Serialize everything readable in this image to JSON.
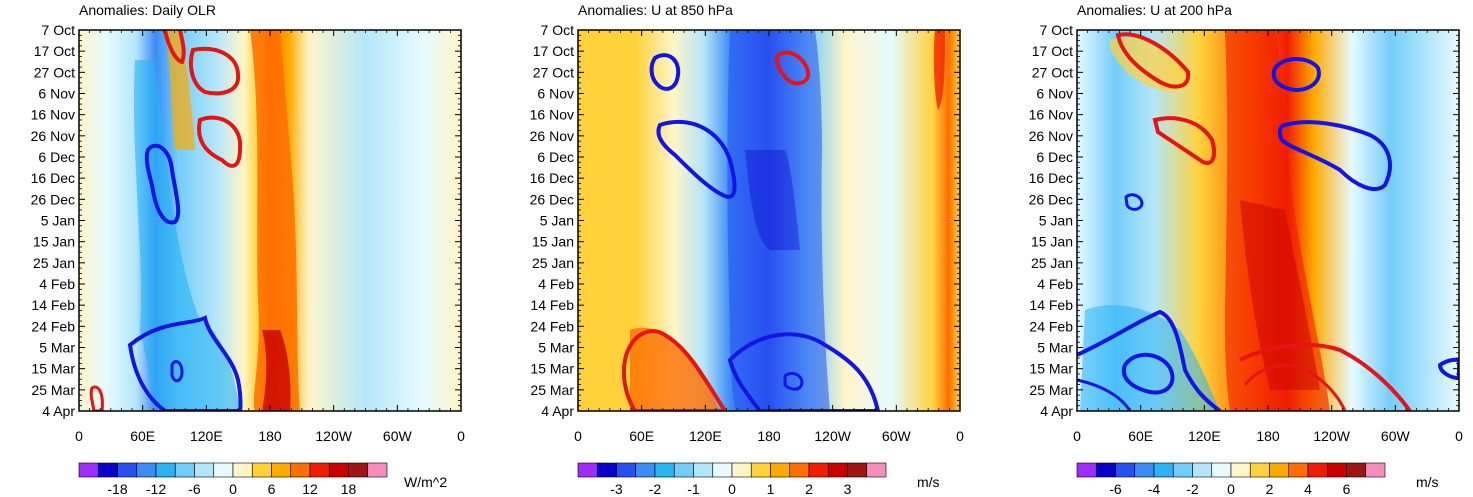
{
  "chart_data": [
    {
      "type": "heatmap",
      "id": "olr",
      "title": "Anomalies: Daily OLR",
      "x_ticks": [
        "0",
        "60E",
        "120E",
        "180",
        "120W",
        "60W",
        "0"
      ],
      "y_ticks": [
        "7 Oct",
        "17 Oct",
        "27 Oct",
        "6 Nov",
        "16 Nov",
        "26 Nov",
        "6 Dec",
        "16 Dec",
        "26 Dec",
        "5 Jan",
        "15 Jan",
        "25 Jan",
        "4 Feb",
        "14 Feb",
        "24 Feb",
        "5 Mar",
        "15 Mar",
        "25 Mar",
        "4 Apr"
      ],
      "xlim_deg_east": [
        0,
        360
      ],
      "colorbar_labels": [
        "-18",
        "-12",
        "-6",
        "0",
        "6",
        "12",
        "18"
      ],
      "colorbar_levels": [
        -21,
        -18,
        -15,
        -12,
        -9,
        -6,
        -3,
        0,
        3,
        6,
        9,
        12,
        15,
        18,
        21
      ],
      "units": "W/m^2",
      "field_summary": [
        {
          "lon": 60,
          "value": -12
        },
        {
          "lon": 120,
          "value": -6
        },
        {
          "lon": 180,
          "value": 15
        },
        {
          "lon": 270,
          "value": -3
        },
        {
          "lon": 330,
          "value": 3
        }
      ]
    },
    {
      "type": "heatmap",
      "id": "u850",
      "title": "Anomalies: U at 850 hPa",
      "x_ticks": [
        "0",
        "60E",
        "120E",
        "180",
        "120W",
        "60W",
        "0"
      ],
      "y_ticks": [
        "7 Oct",
        "17 Oct",
        "27 Oct",
        "6 Nov",
        "16 Nov",
        "26 Nov",
        "6 Dec",
        "16 Dec",
        "26 Dec",
        "5 Jan",
        "15 Jan",
        "25 Jan",
        "4 Feb",
        "14 Feb",
        "24 Feb",
        "5 Mar",
        "15 Mar",
        "25 Mar",
        "4 Apr"
      ],
      "xlim_deg_east": [
        0,
        360
      ],
      "colorbar_labels": [
        "-3",
        "-2",
        "-1",
        "0",
        "1",
        "2",
        "3"
      ],
      "colorbar_levels": [
        -3.5,
        -3,
        -2.5,
        -2,
        -1.5,
        -1,
        -0.5,
        0,
        0.5,
        1,
        1.5,
        2,
        2.5,
        3,
        3.5
      ],
      "units": "m/s",
      "field_summary": [
        {
          "lon": 60,
          "value": 1
        },
        {
          "lon": 180,
          "value": -2.5
        },
        {
          "lon": 270,
          "value": 0.5
        },
        {
          "lon": 340,
          "value": 2
        }
      ]
    },
    {
      "type": "heatmap",
      "id": "u200",
      "title": "Anomalies: U at 200 hPa",
      "x_ticks": [
        "0",
        "60E",
        "120E",
        "180",
        "120W",
        "60W",
        "0"
      ],
      "y_ticks": [
        "7 Oct",
        "17 Oct",
        "27 Oct",
        "6 Nov",
        "16 Nov",
        "26 Nov",
        "6 Dec",
        "16 Dec",
        "26 Dec",
        "5 Jan",
        "15 Jan",
        "25 Jan",
        "4 Feb",
        "14 Feb",
        "24 Feb",
        "5 Mar",
        "15 Mar",
        "25 Mar",
        "4 Apr"
      ],
      "xlim_deg_east": [
        0,
        360
      ],
      "colorbar_labels": [
        "-6",
        "-4",
        "-2",
        "0",
        "2",
        "4",
        "6"
      ],
      "colorbar_levels": [
        -7,
        -6,
        -5,
        -4,
        -3,
        -2,
        -1,
        0,
        1,
        2,
        3,
        4,
        5,
        6,
        7
      ],
      "units": "m/s",
      "field_summary": [
        {
          "lon": 60,
          "value": -3
        },
        {
          "lon": 190,
          "value": 5
        },
        {
          "lon": 280,
          "value": -2
        }
      ]
    }
  ],
  "palette": [
    "#9e2cfa",
    "#0a00c8",
    "#2850f0",
    "#3c8cf5",
    "#28b4f5",
    "#73cdfa",
    "#b4e6fa",
    "#e6faff",
    "#fff5c8",
    "#ffd23c",
    "#ffaa00",
    "#ff6e00",
    "#f01e00",
    "#c80000",
    "#a01414",
    "#f78cbe"
  ]
}
